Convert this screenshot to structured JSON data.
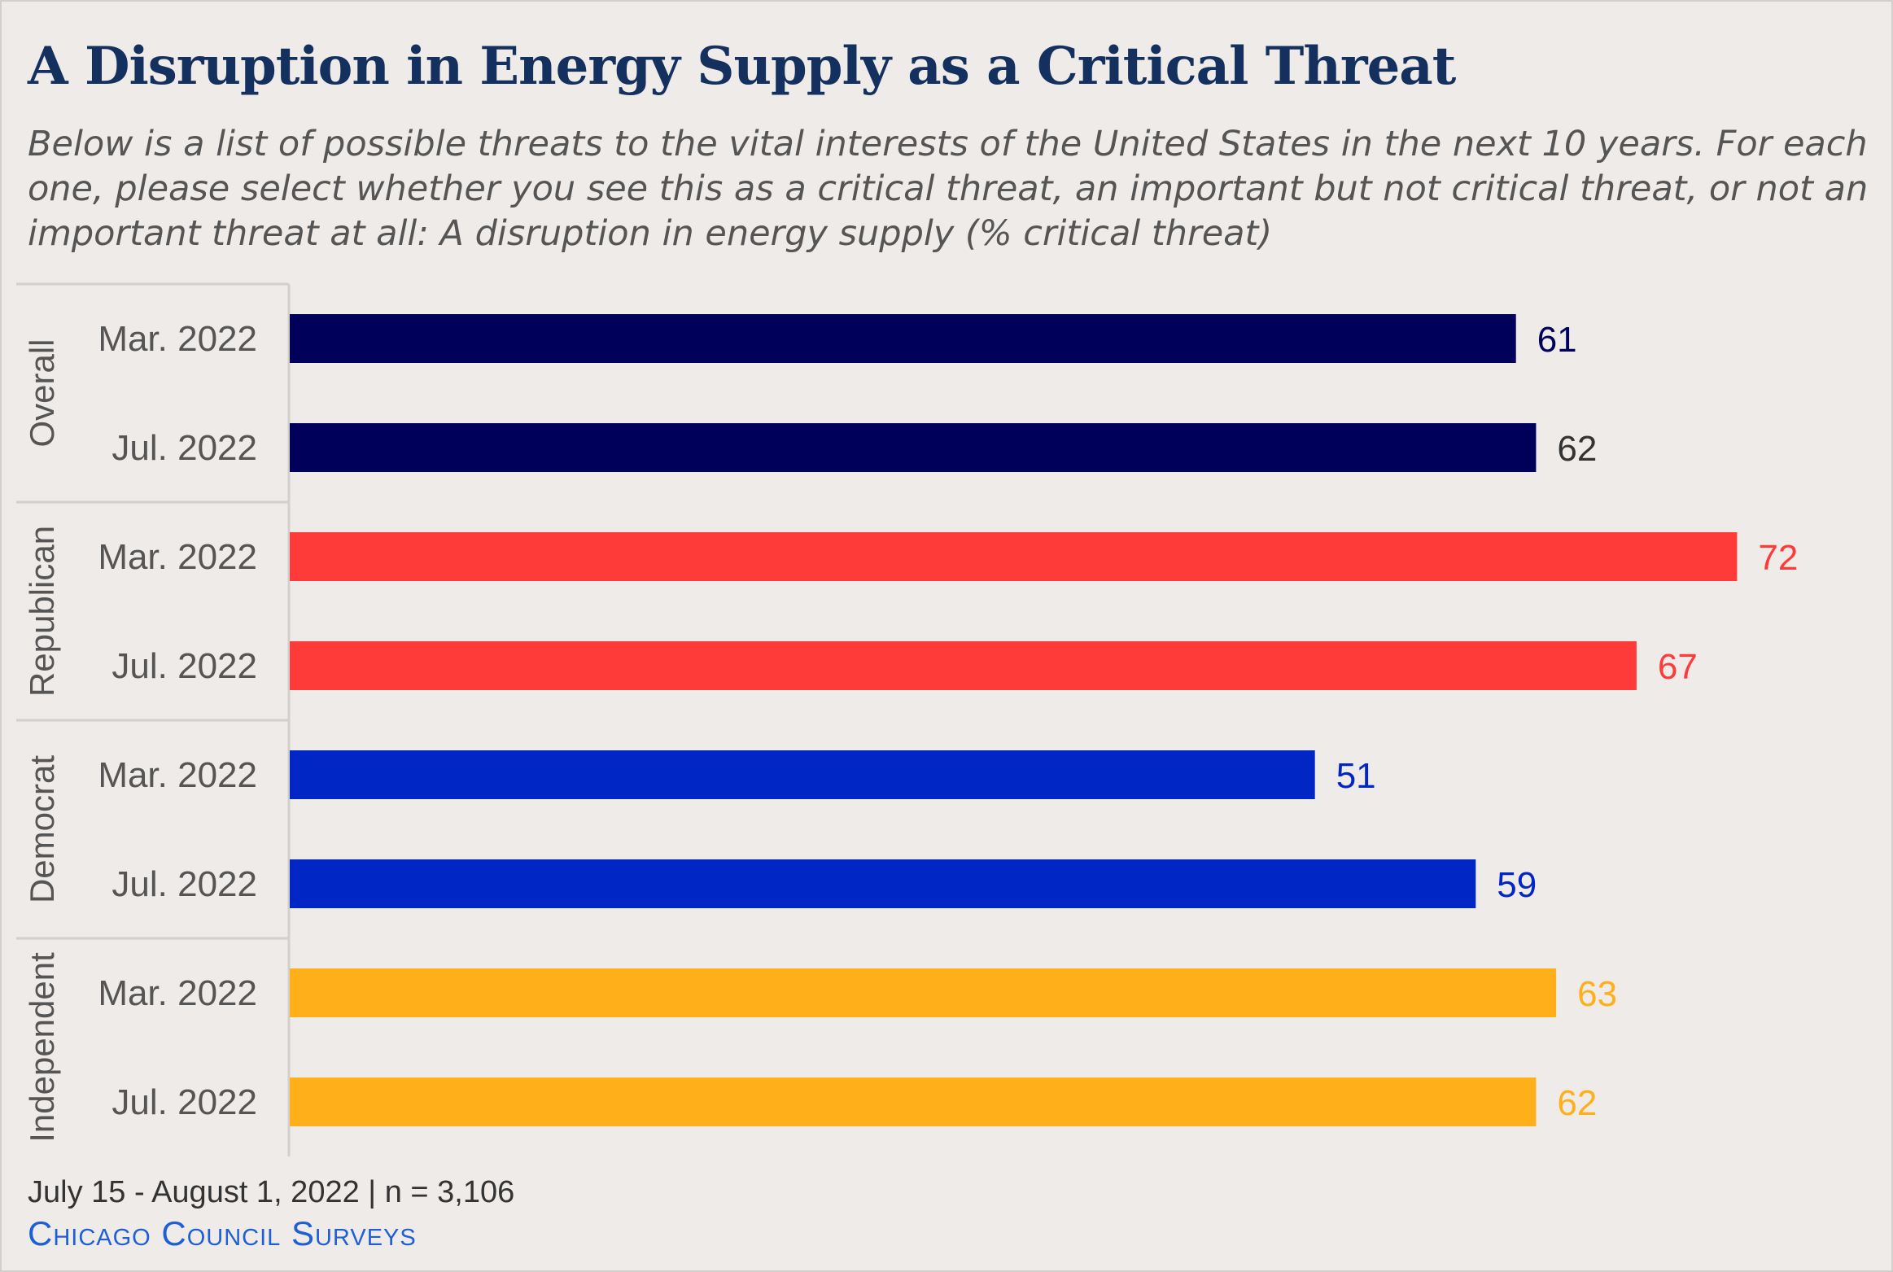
{
  "title": "A Disruption in Energy Supply as a Critical Threat",
  "subtitle": "Below is a list of possible threats to the vital interests of the United States in the next 10 years. For each one, please select whether you see this as a critical threat, an important but not critical threat, or not an important threat at all: A disruption in energy supply (% critical threat)",
  "footer": {
    "date_sample": "July 15 - August 1, 2022 | n = 3,106",
    "brand": "Chicago Council Surveys"
  },
  "chart_data": {
    "type": "bar",
    "orientation": "horizontal",
    "xlim": [
      0,
      80
    ],
    "grid": false,
    "groups": [
      {
        "name": "Overall",
        "color": "#00005a",
        "bars": [
          {
            "category": "Mar. 2022",
            "value": 61
          },
          {
            "category": "Jul. 2022",
            "value": 62
          }
        ],
        "label_colors": [
          "#00005a",
          "#333333"
        ]
      },
      {
        "name": "Republican",
        "color": "#fe3b38",
        "bars": [
          {
            "category": "Mar. 2022",
            "value": 72
          },
          {
            "category": "Jul. 2022",
            "value": 67
          }
        ],
        "label_colors": [
          "#fe3b38",
          "#fe3b38"
        ]
      },
      {
        "name": "Democrat",
        "color": "#0027c5",
        "bars": [
          {
            "category": "Mar. 2022",
            "value": 51
          },
          {
            "category": "Jul. 2022",
            "value": 59
          }
        ],
        "label_colors": [
          "#0027c5",
          "#0027c5"
        ]
      },
      {
        "name": "Independent",
        "color": "#feaf1a",
        "bars": [
          {
            "category": "Mar. 2022",
            "value": 63
          },
          {
            "category": "Jul. 2022",
            "value": 62
          }
        ],
        "label_colors": [
          "#feaf1a",
          "#feaf1a"
        ]
      }
    ]
  }
}
